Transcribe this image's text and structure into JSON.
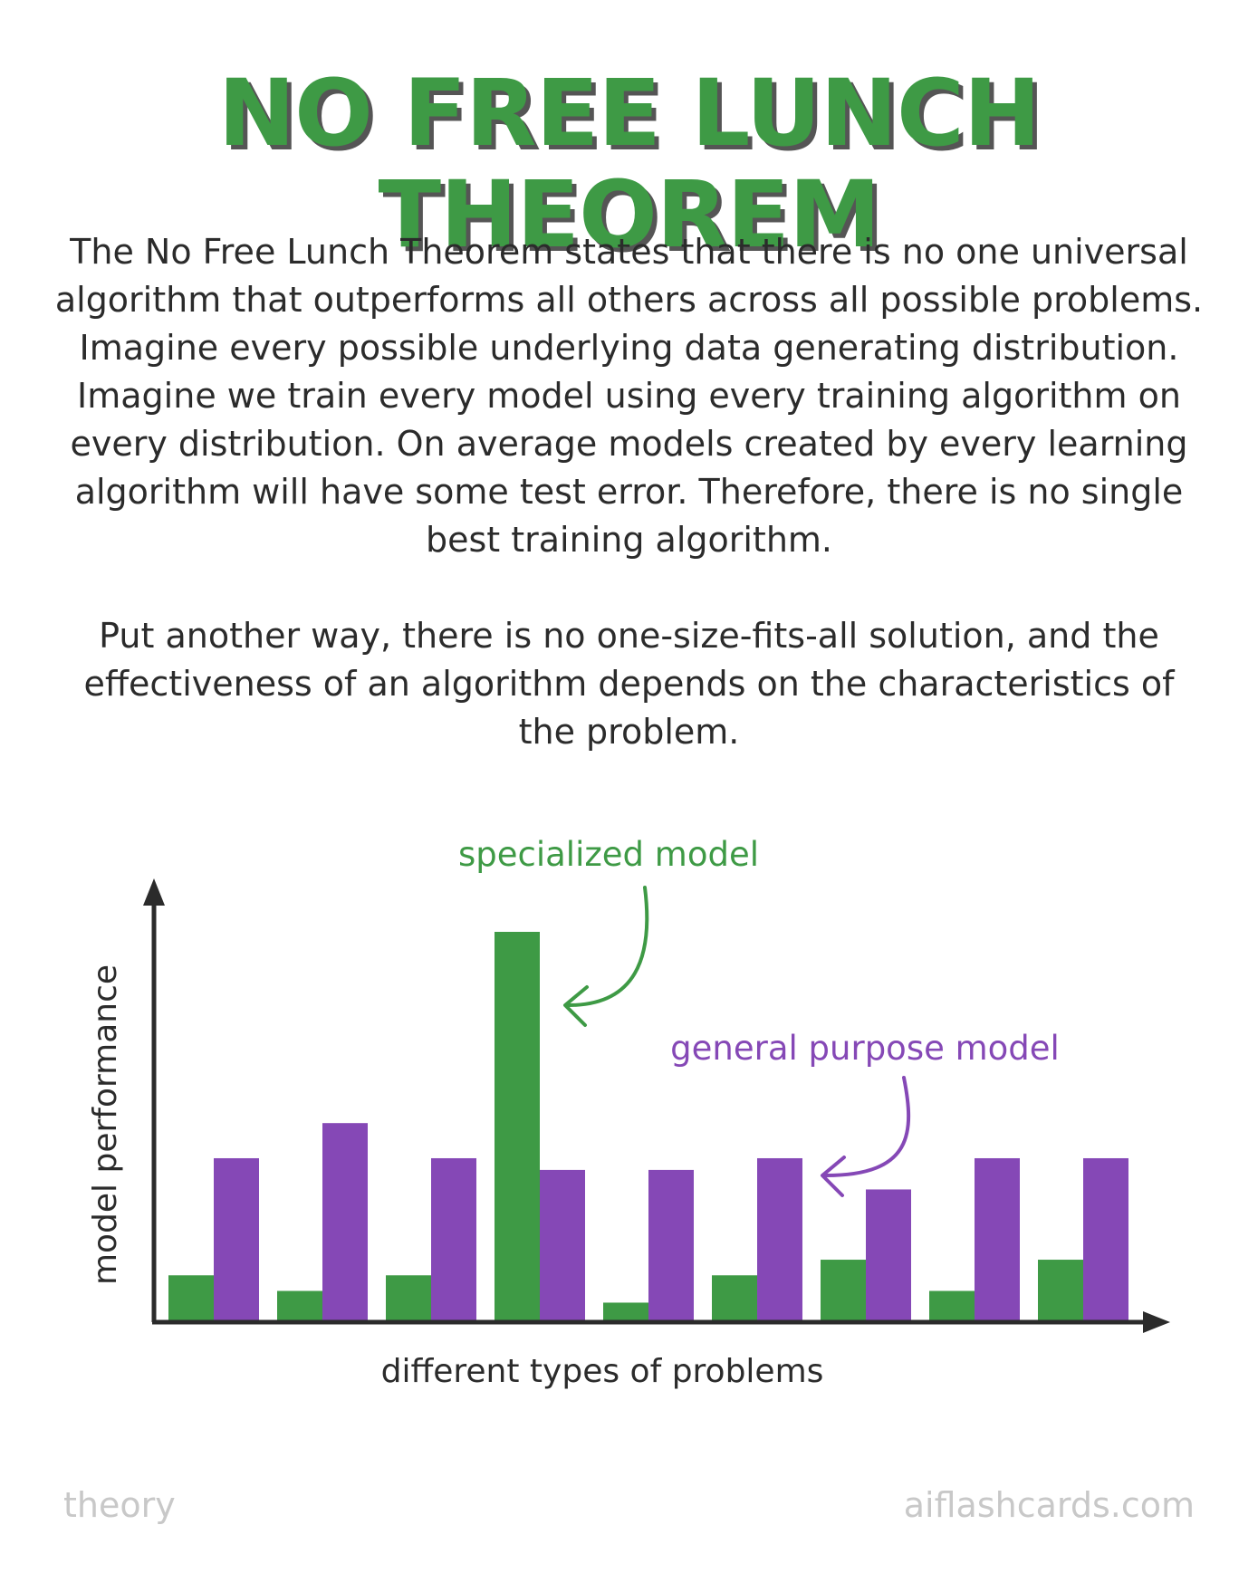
{
  "title": "NO FREE LUNCH THEOREM",
  "paragraph1": "The No Free Lunch Theorem states that there is no one universal algorithm that outperforms all others across all possible problems. Imagine every possible underlying data generating distribution. Imagine we train every model using every training algorithm on every distribution. On average models created by every learning algorithm will have some test error. Therefore, there is no single best training algorithm.",
  "paragraph2": "Put another way, there is no one-size-fits-all solution, and the effectiveness of an algorithm depends on the characteristics of the problem.",
  "chart_data": {
    "type": "bar",
    "categories": [
      "",
      "",
      "",
      "",
      "",
      "",
      "",
      "",
      ""
    ],
    "series": [
      {
        "name": "specialized model",
        "values": [
          0.12,
          0.08,
          0.12,
          1.0,
          0.05,
          0.12,
          0.16,
          0.08,
          0.16
        ],
        "color": "#3e9a45"
      },
      {
        "name": "general purpose model",
        "values": [
          0.42,
          0.51,
          0.42,
          0.39,
          0.39,
          0.42,
          0.34,
          0.42,
          0.42
        ],
        "color": "#8548b6"
      }
    ],
    "xlabel": "different types of problems",
    "ylabel": "model performance",
    "annotations": [
      {
        "text": "specialized model",
        "color": "#3e9a45"
      },
      {
        "text": "general purpose model",
        "color": "#8548b6"
      }
    ],
    "ylim": [
      0,
      1.0
    ]
  },
  "footer": {
    "left": "theory",
    "right": "aiflashcards.com"
  }
}
